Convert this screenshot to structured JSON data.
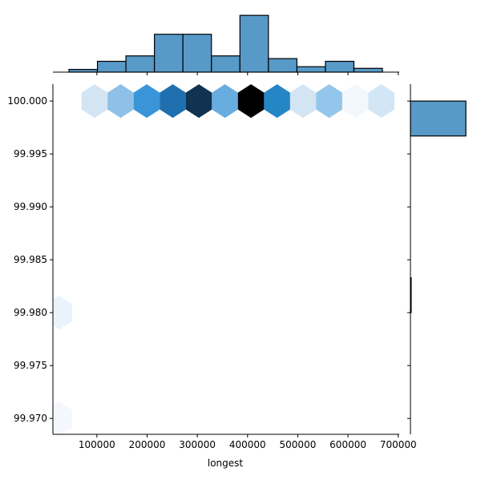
{
  "chart_data": {
    "type": "hexbin-jointplot",
    "xlabel": "longest",
    "ylabel": "",
    "xlim": [
      12500,
      702000
    ],
    "ylim": [
      99.9685,
      100.0016
    ],
    "x_ticks": [
      "100000",
      "200000",
      "300000",
      "400000",
      "500000",
      "600000",
      "700000"
    ],
    "x_tick_values": [
      100000,
      200000,
      300000,
      400000,
      500000,
      600000,
      700000
    ],
    "y_ticks": [
      "99.970",
      "99.975",
      "99.980",
      "99.985",
      "99.990",
      "99.995",
      "100.000"
    ],
    "y_tick_values": [
      99.97,
      99.975,
      99.98,
      99.985,
      99.99,
      99.995,
      100.0
    ],
    "hexbins": [
      {
        "x": 95500,
        "y": 100.0,
        "color": "#d3e4f3"
      },
      {
        "x": 147400,
        "y": 100.0,
        "color": "#8fc0e7"
      },
      {
        "x": 199300,
        "y": 100.0,
        "color": "#3a95d8"
      },
      {
        "x": 251200,
        "y": 100.0,
        "color": "#2070b0"
      },
      {
        "x": 303100,
        "y": 100.0,
        "color": "#0f3350"
      },
      {
        "x": 355000,
        "y": 100.0,
        "color": "#68ade0"
      },
      {
        "x": 406900,
        "y": 100.0,
        "color": "#000000"
      },
      {
        "x": 458800,
        "y": 100.0,
        "color": "#2586c6"
      },
      {
        "x": 510700,
        "y": 100.0,
        "color": "#d3e4f3"
      },
      {
        "x": 562600,
        "y": 100.0,
        "color": "#93c6ea"
      },
      {
        "x": 614500,
        "y": 100.0,
        "color": "#f2f7fc"
      },
      {
        "x": 666400,
        "y": 100.0,
        "color": "#d3e6f5"
      },
      {
        "x": 24800,
        "y": 99.98,
        "color": "#eaf3fb"
      },
      {
        "x": 24800,
        "y": 99.97,
        "color": "#f4f8fc"
      }
    ],
    "top_histogram": {
      "bin_start": 44400,
      "bin_width": 56740,
      "counts": [
        1,
        4,
        6,
        14,
        14,
        6,
        21,
        5,
        2,
        4,
        1.4
      ],
      "ylim": [
        0,
        25.2
      ],
      "color": "#5799c7"
    },
    "right_histogram": {
      "bins": [
        {
          "y0": 99.98,
          "y1": 99.9833,
          "count": 1
        },
        {
          "y0": 99.9967,
          "y1": 100.0,
          "count": 77
        }
      ],
      "xlim": [
        0,
        98
      ],
      "color": "#5799c7"
    }
  }
}
